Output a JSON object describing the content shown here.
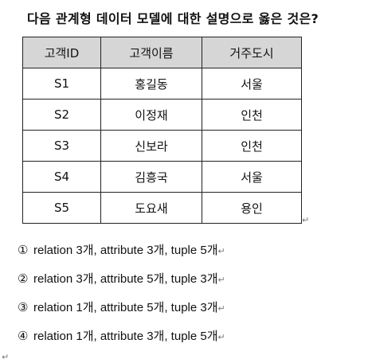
{
  "question": "다음 관계형 데이터 모델에 대한 설명으로 옳은 것은?",
  "return_mark": "↵",
  "table": {
    "headers": [
      "고객ID",
      "고객이름",
      "거주도시"
    ],
    "rows": [
      [
        "S1",
        "홍길동",
        "서울"
      ],
      [
        "S2",
        "이정재",
        "인천"
      ],
      [
        "S3",
        "신보라",
        "인천"
      ],
      [
        "S4",
        "김흥국",
        "서울"
      ],
      [
        "S5",
        "도요새",
        "용인"
      ]
    ]
  },
  "options": [
    {
      "num": "①",
      "text": "relation 3개, attribute 3개, tuple 5개"
    },
    {
      "num": "②",
      "text": "relation 3개, attribute 5개, tuple 3개"
    },
    {
      "num": "③",
      "text": "relation 1개, attribute 5개, tuple 3개"
    },
    {
      "num": "④",
      "text": "relation 1개, attribute 3개, tuple 5개"
    }
  ]
}
